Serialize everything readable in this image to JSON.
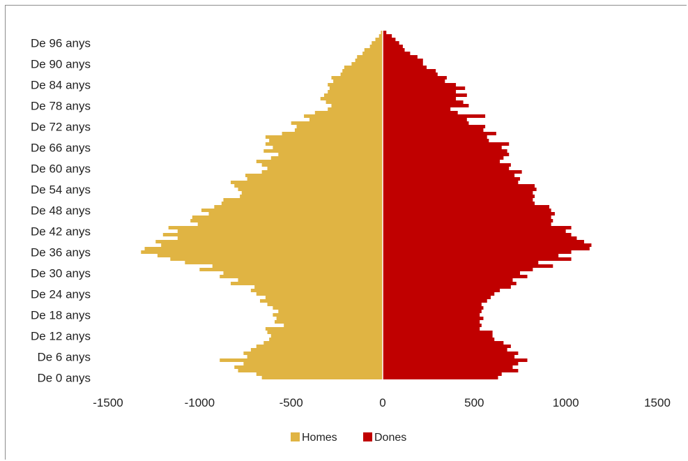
{
  "chart_data": {
    "type": "bar",
    "orientation": "horizontal",
    "subtype": "population-pyramid",
    "title": "",
    "xlabel": "",
    "ylabel": "",
    "xlim": [
      -1500,
      1500
    ],
    "xticks": [
      -1500,
      -1000,
      -500,
      0,
      500,
      1000,
      1500
    ],
    "categories": [
      "De 0 anys",
      "De 1 anys",
      "De 2 anys",
      "De 3 anys",
      "De 4 anys",
      "De 5 anys",
      "De 6 anys",
      "De 7 anys",
      "De 8 anys",
      "De 9 anys",
      "De 10 anys",
      "De 11 anys",
      "De 12 anys",
      "De 13 anys",
      "De 14 anys",
      "De 15 anys",
      "De 16 anys",
      "De 17 anys",
      "De 18 anys",
      "De 19 anys",
      "De 20 anys",
      "De 21 anys",
      "De 22 anys",
      "De 23 anys",
      "De 24 anys",
      "De 25 anys",
      "De 26 anys",
      "De 27 anys",
      "De 28 anys",
      "De 29 anys",
      "De 30 anys",
      "De 31 anys",
      "De 32 anys",
      "De 33 anys",
      "De 34 anys",
      "De 35 anys",
      "De 36 anys",
      "De 37 anys",
      "De 38 anys",
      "De 39 anys",
      "De 40 anys",
      "De 41 anys",
      "De 42 anys",
      "De 43 anys",
      "De 44 anys",
      "De 45 anys",
      "De 46 anys",
      "De 47 anys",
      "De 48 anys",
      "De 49 anys",
      "De 50 anys",
      "De 51 anys",
      "De 52 anys",
      "De 53 anys",
      "De 54 anys",
      "De 55 anys",
      "De 56 anys",
      "De 57 anys",
      "De 58 anys",
      "De 59 anys",
      "De 60 anys",
      "De 61 anys",
      "De 62 anys",
      "De 63 anys",
      "De 64 anys",
      "De 65 anys",
      "De 66 anys",
      "De 67 anys",
      "De 68 anys",
      "De 69 anys",
      "De 70 anys",
      "De 71 anys",
      "De 72 anys",
      "De 73 anys",
      "De 74 anys",
      "De 75 anys",
      "De 76 anys",
      "De 77 anys",
      "De 78 anys",
      "De 79 anys",
      "De 80 anys",
      "De 81 anys",
      "De 82 anys",
      "De 83 anys",
      "De 84 anys",
      "De 85 anys",
      "De 86 anys",
      "De 87 anys",
      "De 88 anys",
      "De 89 anys",
      "De 90 anys",
      "De 91 anys",
      "De 92 anys",
      "De 93 anys",
      "De 94 anys",
      "De 95 anys",
      "De 96 anys",
      "De 97 anys",
      "De 98 anys",
      "De 99 anys"
    ],
    "tick_labels": [
      "De 0 anys",
      "De 6 anys",
      "De 12 anys",
      "De 18 anys",
      "De 24 anys",
      "De 30 anys",
      "De 36 anys",
      "De 42 anys",
      "De 48 anys",
      "De 54 anys",
      "De 60 anys",
      "De 66 anys",
      "De 72 anys",
      "De 78 anys",
      "De 84 anys",
      "De 90 anys",
      "De 96 anys"
    ],
    "series": [
      {
        "name": "Homes",
        "color": "#E0B443",
        "values": [
          -660,
          -690,
          -790,
          -810,
          -760,
          -890,
          -740,
          -760,
          -720,
          -690,
          -650,
          -620,
          -610,
          -630,
          -640,
          -540,
          -590,
          -580,
          -600,
          -570,
          -600,
          -630,
          -670,
          -640,
          -690,
          -720,
          -700,
          -830,
          -790,
          -890,
          -870,
          -1000,
          -930,
          -1080,
          -1160,
          -1230,
          -1320,
          -1300,
          -1210,
          -1240,
          -1120,
          -1200,
          -1120,
          -1170,
          -1010,
          -1050,
          -1040,
          -950,
          -990,
          -920,
          -880,
          -870,
          -780,
          -770,
          -790,
          -810,
          -830,
          -740,
          -750,
          -660,
          -630,
          -660,
          -690,
          -610,
          -570,
          -650,
          -600,
          -640,
          -620,
          -640,
          -550,
          -480,
          -470,
          -500,
          -400,
          -430,
          -370,
          -300,
          -280,
          -310,
          -340,
          -320,
          -300,
          -290,
          -300,
          -270,
          -280,
          -230,
          -220,
          -210,
          -170,
          -150,
          -140,
          -110,
          -100,
          -70,
          -60,
          -40,
          -20,
          -10
        ]
      },
      {
        "name": "Dones",
        "color": "#C00000",
        "values": [
          630,
          650,
          740,
          710,
          740,
          790,
          720,
          740,
          680,
          700,
          660,
          610,
          600,
          600,
          530,
          540,
          530,
          550,
          530,
          540,
          550,
          540,
          570,
          590,
          610,
          640,
          700,
          730,
          710,
          790,
          750,
          820,
          930,
          850,
          1030,
          960,
          1030,
          1130,
          1140,
          1100,
          1060,
          1030,
          1000,
          1030,
          920,
          930,
          920,
          940,
          920,
          910,
          830,
          820,
          830,
          820,
          840,
          830,
          740,
          750,
          720,
          760,
          690,
          700,
          640,
          660,
          690,
          680,
          650,
          690,
          580,
          570,
          620,
          550,
          560,
          470,
          460,
          560,
          410,
          370,
          470,
          440,
          400,
          460,
          400,
          450,
          400,
          340,
          350,
          300,
          290,
          240,
          220,
          220,
          190,
          150,
          120,
          110,
          90,
          70,
          50,
          20
        ]
      }
    ],
    "legend": {
      "position": "bottom",
      "entries": [
        "Homes",
        "Dones"
      ]
    },
    "grid": false
  }
}
